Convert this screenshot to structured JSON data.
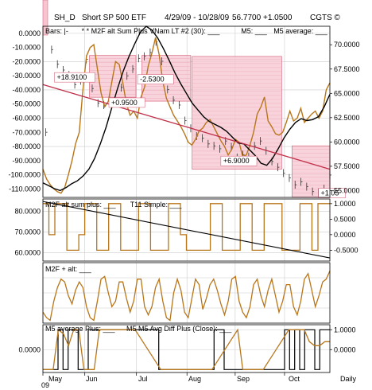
{
  "header": {
    "symbol": "SH_D",
    "name": "Short SP 500 ETF",
    "date_range": "4/29/09 - 10/28/09",
    "last": "56.7700",
    "change": "+1.0500",
    "source": "CGTS ©"
  },
  "x_axis": {
    "months": [
      "May",
      "Jun",
      "Jul",
      "Aug",
      "Sep",
      "Oct"
    ],
    "year": "09",
    "interval": "Daily"
  },
  "colors": {
    "oscillator": "#b8761a",
    "price": "#000000",
    "trend": "#c0304a",
    "box_fill": "#f7c4cf",
    "box_edge": "#d86a82",
    "grid": "#cccccc"
  },
  "chart_data": [
    {
      "panel": "price",
      "type": "line",
      "legend": [
        "Bars: |-",
        "* * M2F alt Sum Plus VNam LT #2 (30): ___",
        "M5: ___",
        "M5 average: ___"
      ],
      "left_axis": {
        "ticks": [
          "0.0000",
          "-10.0000",
          "-20.0000",
          "-30.0000",
          "-40.0000",
          "-50.0000",
          "-60.0000",
          "-70.0000",
          "-80.0000",
          "-90.0000",
          "-100.0000",
          "-110.0000"
        ],
        "range": [
          -116,
          5
        ]
      },
      "right_axis": {
        "ticks": [
          "70.0000",
          "67.5000",
          "65.0000",
          "62.5000",
          "60.0000",
          "57.5000",
          "55.0000"
        ],
        "range": [
          54.3,
          71.9
        ]
      },
      "price_bars": [
        61.0,
        69.5,
        68.0,
        67.4,
        66.9,
        65.9,
        66.3,
        68.5,
        65.5,
        64.0,
        63.8,
        64.5,
        64.0,
        65.6,
        66.8,
        67.5,
        68.6,
        68.8,
        69.2,
        70.3,
        68.3,
        65.4,
        64.3,
        63.8,
        62.2,
        61.4,
        60.6,
        60.4,
        59.8,
        59.6,
        59.3,
        60.1,
        59.5,
        58.4,
        58.7,
        58.5,
        59.6,
        60.1,
        59.1,
        58.0,
        57.4,
        56.8,
        56.3,
        55.6,
        55.9,
        55.4,
        54.9,
        54.8,
        55.2,
        56.6
      ],
      "oscillator": [
        -96,
        -103,
        -107,
        -110,
        -112,
        -113,
        -109,
        -100,
        -90,
        -78,
        -70,
        -40,
        -16,
        -10,
        -8,
        -25,
        -42,
        -52,
        -48,
        -34,
        -20,
        -22,
        -35,
        -50,
        -58,
        -55,
        -60,
        -45,
        -38,
        -23,
        -14,
        -3,
        -15,
        -34,
        -46,
        -52,
        -58,
        -62,
        -66,
        -71,
        -77,
        -79,
        -75,
        -69,
        -67,
        -63,
        -61,
        -66,
        -71,
        -76,
        -80,
        -86,
        -82,
        -75,
        -77,
        -87,
        -86,
        -79,
        -70,
        -57,
        -52,
        -45,
        -62,
        -66,
        -71,
        -72,
        -70,
        -63,
        -55,
        -62,
        -60,
        -53,
        -63,
        -60,
        -57,
        -55,
        -60,
        -55,
        -40,
        -35
      ],
      "ma_values": [
        55.8,
        55.5,
        55.2,
        55.0,
        55.3,
        55.7,
        56.0,
        56.5,
        57.2,
        58.3,
        59.8,
        61.5,
        63.5,
        65.5,
        67.3,
        68.8,
        70.1,
        71.3,
        71.9,
        71.5,
        70.7,
        69.6,
        68.4,
        67.1,
        66.0,
        65.0,
        64.0,
        63.3,
        62.6,
        62.1,
        61.8,
        61.5,
        61.1,
        60.5,
        59.9,
        59.8,
        59.2,
        58.6,
        57.8,
        57.6,
        58.3,
        59.3,
        60.4,
        61.3,
        62.0,
        62.4,
        62.2,
        62.3,
        62.6,
        63.6,
        64.9
      ],
      "trend_values": [
        65.9,
        57.2
      ],
      "boxes": [
        {
          "x": [
            0.162,
            0.324
          ],
          "y": [
            64.6,
            68.9
          ]
        },
        {
          "x": [
            0.345,
            0.515
          ],
          "y": [
            64.2,
            68.9
          ]
        },
        {
          "x": [
            0.52,
            0.832
          ],
          "y": [
            57.2,
            68.8
          ]
        },
        {
          "x": [
            0.868,
            1.0
          ],
          "y": [
            54.3,
            59.6
          ]
        }
      ],
      "labels": [
        "+18.9100",
        "+0.9500",
        "-2.5300",
        "+6.9000",
        "+1.05"
      ]
    },
    {
      "panel": "m2f_sum",
      "type": "line",
      "legend": [
        "M2F alt sum plus: ___",
        "T11 Simple: ___"
      ],
      "left_axis": {
        "ticks": [
          "80.0000",
          "70.0000",
          "60.0000"
        ],
        "range": [
          56,
          86
        ]
      },
      "right_axis": {
        "ticks": [
          "1.0000",
          "0.5000",
          "0.0000",
          "-0.5000"
        ],
        "range": [
          -0.85,
          1.15
        ]
      },
      "step_values": [
        1,
        0,
        1,
        1,
        -0.5,
        -0.5,
        0,
        1,
        1,
        -0.5,
        -0.5,
        1,
        1,
        -0.5,
        -0.5,
        -0.5,
        1,
        1,
        -0.5,
        -0.5,
        -0.5,
        1,
        1,
        0,
        -0.5,
        -0.5,
        -0.5,
        -0.5,
        1,
        1,
        -0.5,
        -0.5,
        -0.5,
        1,
        1,
        -0.5,
        -0.5,
        1,
        1,
        1,
        -0.5,
        -0.5,
        -0.5,
        1,
        1,
        -0.5,
        1,
        1
      ],
      "trend_values": [
        1.07,
        -0.75
      ]
    },
    {
      "panel": "m2f_alt",
      "type": "line",
      "legend": [
        "M2F + alt: ___"
      ],
      "values": [
        20,
        10,
        5,
        40,
        65,
        80,
        75,
        50,
        35,
        60,
        75,
        65,
        30,
        10,
        5,
        40,
        80,
        85,
        55,
        30,
        40,
        75,
        75,
        45,
        20,
        40,
        80,
        80,
        30,
        15,
        30,
        65,
        80,
        40,
        10,
        5,
        55,
        80,
        60,
        20,
        10,
        45,
        80,
        70,
        25,
        45,
        70,
        80,
        60,
        35,
        15,
        40,
        80,
        85,
        40,
        20,
        10,
        30,
        70,
        80,
        50,
        30,
        60,
        80,
        50,
        20,
        40,
        70,
        70,
        30,
        15,
        40,
        80,
        90,
        60,
        30,
        50,
        75,
        80,
        95
      ]
    },
    {
      "panel": "m5",
      "type": "line",
      "legend": [
        "M5 average Plus: ___",
        "M5 M5 Avg Diff Plus (Close): ___"
      ],
      "left_axis": {
        "ticks": [
          "0.0000"
        ]
      },
      "right_axis": {
        "ticks": [
          "1.0000",
          "0.0000"
        ],
        "range": [
          -1.15,
          1.25
        ]
      },
      "black_step": [
        -1,
        -1,
        -1,
        1,
        -1,
        1,
        1,
        -1,
        -1,
        1,
        1,
        1,
        1,
        1,
        1,
        1,
        1,
        1,
        1,
        1,
        1,
        1,
        1,
        -1,
        -1,
        -1,
        -1,
        -1,
        -1,
        -1,
        -1,
        -1,
        -1,
        -1,
        1,
        1,
        -1,
        -1,
        -1,
        -1,
        -1,
        -1,
        -1,
        -1,
        -1,
        -1,
        -1,
        -1,
        1,
        -1,
        1,
        -1,
        1,
        1,
        -1,
        1,
        1
      ],
      "orange_values": [
        -1,
        -1,
        -1,
        1,
        0.8,
        0.2,
        1,
        1,
        -1,
        -1,
        -1,
        1,
        1,
        1,
        1,
        1,
        1,
        1,
        1,
        0.6,
        0.2,
        -0.2,
        -0.6,
        -1,
        -1,
        -1,
        -1,
        -1,
        -1,
        -1,
        -1,
        -1,
        -1,
        -1,
        -0.6,
        -0.2,
        0.2,
        0.6,
        1,
        -1,
        -1,
        -1,
        -1,
        -1,
        -0.6,
        -0.2,
        0.2,
        0.6,
        1,
        1,
        1,
        1,
        0.4,
        0.2,
        0.2,
        0.4,
        0.4
      ]
    }
  ]
}
